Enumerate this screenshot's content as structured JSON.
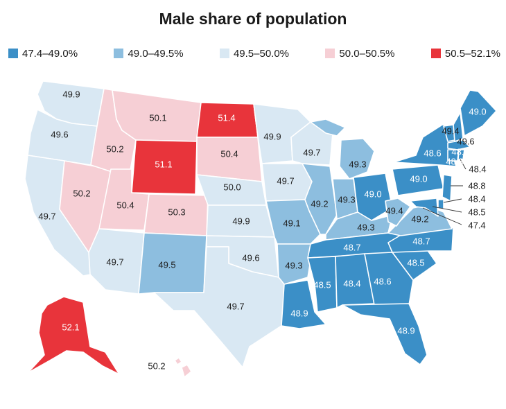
{
  "title": "Male share of population",
  "colors": {
    "c1": "#3b8fc7",
    "c2": "#8dbedf",
    "c3": "#d9e8f3",
    "c4": "#f6cfd5",
    "c5": "#e8343b"
  },
  "legend": [
    {
      "label": "47.4–49.0%",
      "color": "#3b8fc7"
    },
    {
      "label": "49.0–49.5%",
      "color": "#8dbedf"
    },
    {
      "label": "49.5–50.0%",
      "color": "#d9e8f3"
    },
    {
      "label": "50.0–50.5%",
      "color": "#f6cfd5"
    },
    {
      "label": "50.5–52.1%",
      "color": "#e8343b"
    }
  ],
  "states": {
    "WA": "49.9",
    "OR": "49.6",
    "CA": "49.7",
    "NV": "50.2",
    "ID": "50.2",
    "MT": "50.1",
    "WY": "51.1",
    "UT": "50.4",
    "CO": "50.3",
    "AZ": "49.7",
    "NM": "49.5",
    "ND": "51.4",
    "SD": "50.4",
    "NE": "50.0",
    "KS": "49.9",
    "OK": "49.6",
    "TX": "49.7",
    "MN": "49.9",
    "IA": "49.7",
    "MO": "49.1",
    "AR": "49.3",
    "LA": "48.9",
    "WI": "49.7",
    "IL": "49.2",
    "MI": "49.3",
    "IN": "49.3",
    "OH": "49.0",
    "KY": "49.3",
    "TN": "48.7",
    "MS": "48.5",
    "AL": "48.4",
    "GA": "48.6",
    "FL": "48.9",
    "SC": "48.5",
    "NC": "48.7",
    "VA": "49.2",
    "WV": "49.4",
    "PA": "49.0",
    "NY": "48.6",
    "VT": "49.4",
    "NH": "49.6",
    "ME": "49.0",
    "MA": "48.6",
    "CT": "48.8",
    "RI": "48.4",
    "NJ": "48.8",
    "DE": "48.4",
    "MD": "48.5",
    "DC": "47.4",
    "AK": "52.1",
    "HI": "50.2"
  }
}
